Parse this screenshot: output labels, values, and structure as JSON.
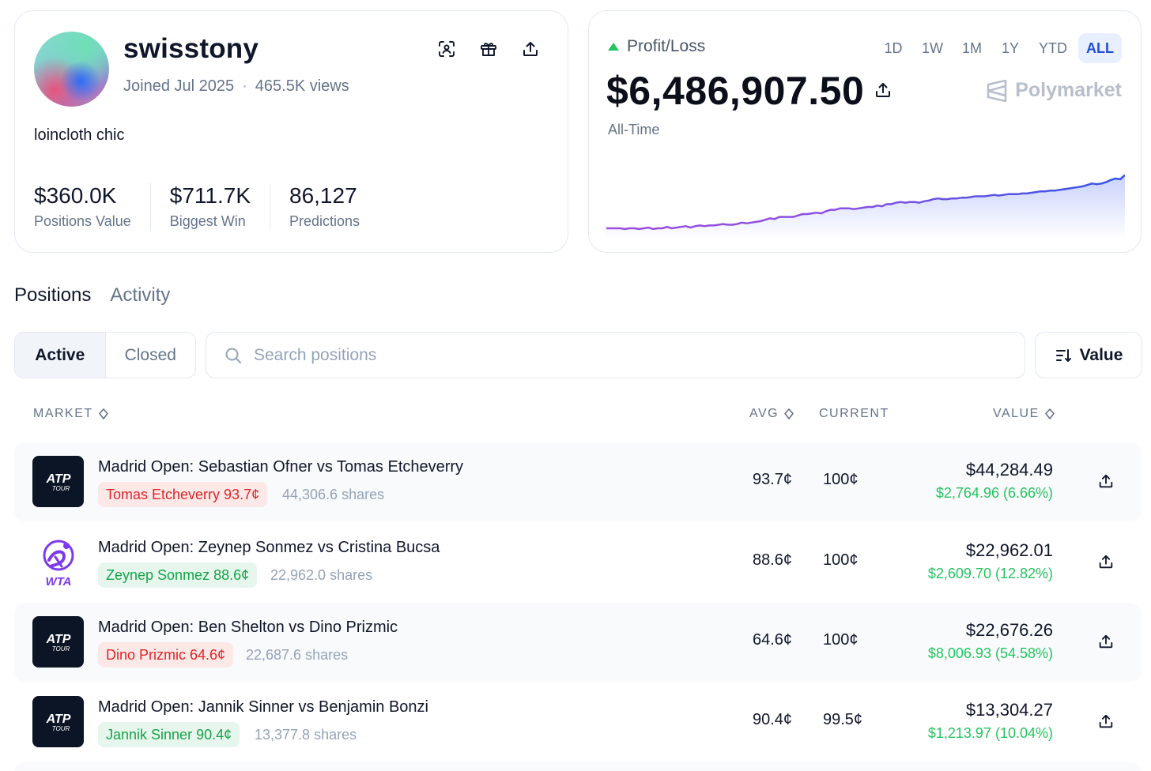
{
  "profile": {
    "username": "swisstony",
    "joined": "Joined Jul 2025",
    "separator": "·",
    "views": "465.5K views",
    "bio": "loincloth chic",
    "stats": [
      {
        "value": "$360.0K",
        "label": "Positions Value"
      },
      {
        "value": "$711.7K",
        "label": "Biggest Win"
      },
      {
        "value": "86,127",
        "label": "Predictions"
      }
    ]
  },
  "pnl": {
    "label": "Profit/Loss",
    "amount": "$6,486,907.50",
    "period_label": "All-Time",
    "brand": "Polymarket",
    "timeframes": [
      "1D",
      "1W",
      "1M",
      "1Y",
      "YTD",
      "ALL"
    ],
    "active_timeframe": "ALL",
    "chart_series": [
      0.1,
      0.1,
      0.1,
      0.1,
      0.09,
      0.1,
      0.1,
      0.09,
      0.1,
      0.11,
      0.09,
      0.1,
      0.1,
      0.12,
      0.1,
      0.11,
      0.12,
      0.13,
      0.11,
      0.13,
      0.14,
      0.13,
      0.14,
      0.14,
      0.15,
      0.16,
      0.15,
      0.15,
      0.16,
      0.18,
      0.17,
      0.18,
      0.19,
      0.2,
      0.22,
      0.24,
      0.23,
      0.26,
      0.26,
      0.26,
      0.26,
      0.28,
      0.3,
      0.3,
      0.31,
      0.32,
      0.31,
      0.34,
      0.36,
      0.36,
      0.38,
      0.38,
      0.38,
      0.37,
      0.38,
      0.39,
      0.4,
      0.4,
      0.42,
      0.41,
      0.44,
      0.44,
      0.46,
      0.47,
      0.46,
      0.47,
      0.47,
      0.46,
      0.48,
      0.49,
      0.51,
      0.52,
      0.51,
      0.51,
      0.52,
      0.52,
      0.53,
      0.53,
      0.54,
      0.55,
      0.55,
      0.55,
      0.56,
      0.57,
      0.56,
      0.57,
      0.58,
      0.58,
      0.58,
      0.59,
      0.59,
      0.6,
      0.61,
      0.62,
      0.62,
      0.63,
      0.63,
      0.64,
      0.65,
      0.66,
      0.67,
      0.68,
      0.69,
      0.71,
      0.73,
      0.72,
      0.73,
      0.75,
      0.78,
      0.8,
      0.79,
      0.85
    ],
    "colors": {
      "line_start": "#9b4de0",
      "line_end": "#2f55e6",
      "fill": "#3b5bef",
      "up": "#22c55e"
    }
  },
  "tabs": [
    {
      "label": "Positions",
      "active": true
    },
    {
      "label": "Activity",
      "active": false
    }
  ],
  "filters": {
    "active_label": "Active",
    "closed_label": "Closed",
    "search_placeholder": "Search positions",
    "sort_label": "Value"
  },
  "table": {
    "headers": {
      "market": "MARKET",
      "avg": "AVG",
      "current": "CURRENT",
      "value": "VALUE"
    },
    "rows": [
      {
        "logo": "ATP",
        "logo_sub": "TOUR",
        "market": "Madrid Open: Sebastian Ofner vs Tomas Etcheverry",
        "outcome": "Tomas Etcheverry 93.7¢",
        "outcome_color": "red",
        "shares": "44,306.6 shares",
        "avg": "93.7¢",
        "current": "100¢",
        "value": "$44,284.49",
        "pnl": "$2,764.96 (6.66%)"
      },
      {
        "logo": "WTA",
        "logo_sub": "",
        "market": "Madrid Open: Zeynep Sonmez vs Cristina Bucsa",
        "outcome": "Zeynep Sonmez 88.6¢",
        "outcome_color": "green",
        "shares": "22,962.0 shares",
        "avg": "88.6¢",
        "current": "100¢",
        "value": "$22,962.01",
        "pnl": "$2,609.70 (12.82%)"
      },
      {
        "logo": "ATP",
        "logo_sub": "TOUR",
        "market": "Madrid Open: Ben Shelton vs Dino Prizmic",
        "outcome": "Dino Prizmic 64.6¢",
        "outcome_color": "red",
        "shares": "22,687.6 shares",
        "avg": "64.6¢",
        "current": "100¢",
        "value": "$22,676.26",
        "pnl": "$8,006.93 (54.58%)"
      },
      {
        "logo": "ATP",
        "logo_sub": "TOUR",
        "market": "Madrid Open: Jannik Sinner vs Benjamin Bonzi",
        "outcome": "Jannik Sinner 90.4¢",
        "outcome_color": "green",
        "shares": "13,377.8 shares",
        "avg": "90.4¢",
        "current": "99.5¢",
        "value": "$13,304.27",
        "pnl": "$1,213.97 (10.04%)"
      }
    ]
  }
}
